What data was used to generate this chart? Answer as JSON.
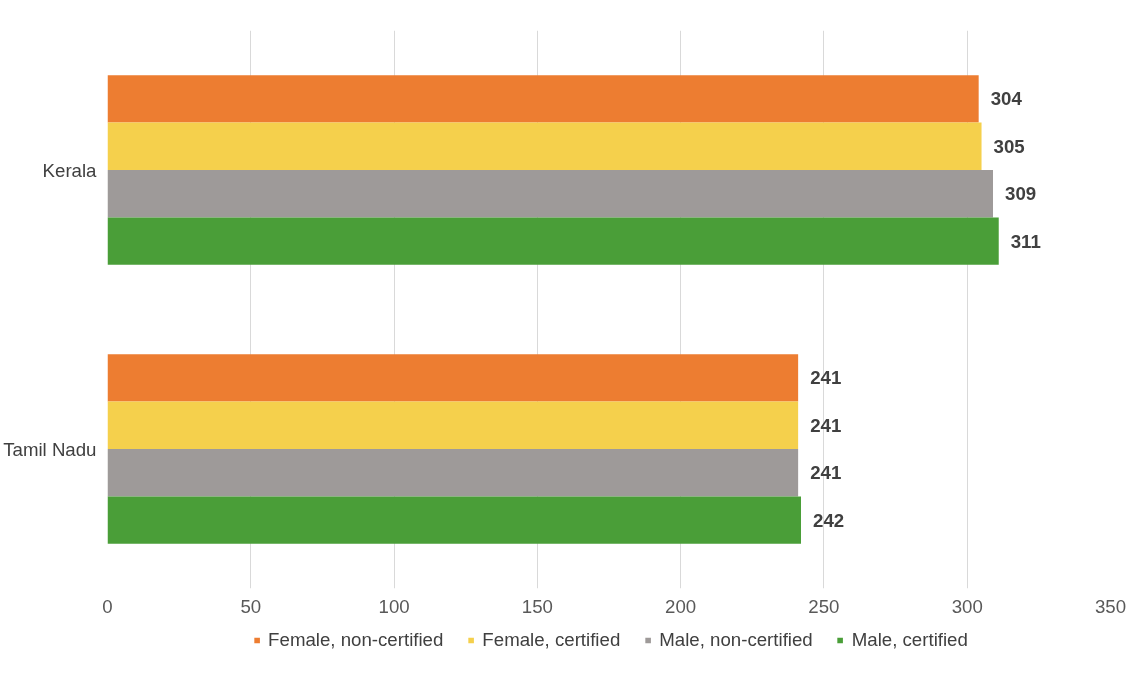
{
  "chart_data": {
    "type": "bar",
    "orientation": "horizontal",
    "categories": [
      "Kerala",
      "Tamil Nadu"
    ],
    "series": [
      {
        "name": "Female, non-certified",
        "color": "#ed7d31",
        "values": [
          304,
          241
        ]
      },
      {
        "name": "Female, certified",
        "color": "#f5d04c",
        "values": [
          305,
          241
        ]
      },
      {
        "name": "Male, non-certified",
        "color": "#9e9a99",
        "values": [
          309,
          241
        ]
      },
      {
        "name": "Male, certified",
        "color": "#4a9e38",
        "values": [
          311,
          242
        ]
      }
    ],
    "xlim": [
      0,
      350
    ],
    "xticks": [
      0,
      50,
      100,
      150,
      200,
      250,
      300,
      350
    ],
    "grid": "x",
    "legend": "bottom",
    "data_labels": true
  }
}
